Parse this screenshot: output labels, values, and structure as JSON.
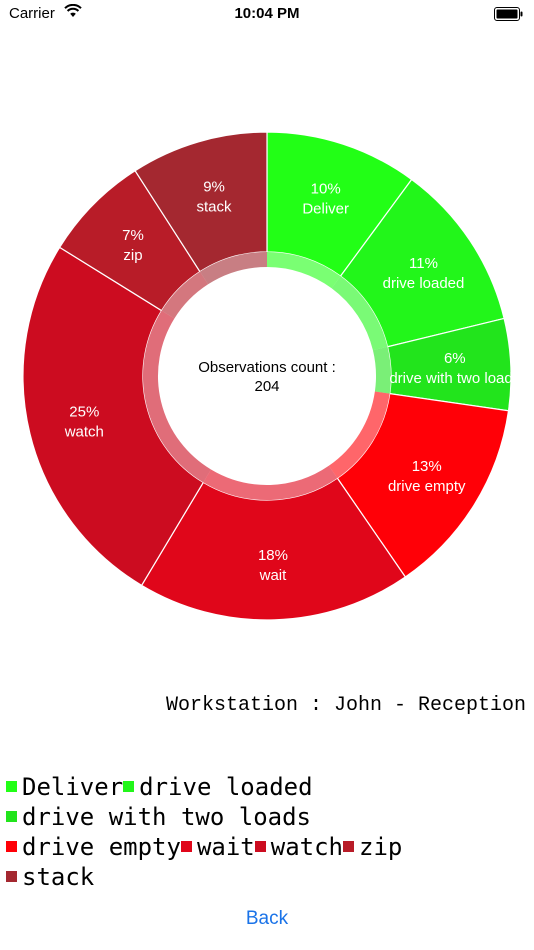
{
  "status_bar": {
    "carrier": "Carrier",
    "time": "10:04 PM"
  },
  "chart_data": {
    "type": "pie",
    "title": "",
    "center_text": {
      "line1": "Observations count :",
      "line2": "204"
    },
    "slices": [
      {
        "label": "Deliver",
        "percent_label": "10%",
        "value": 10,
        "color": "#22ff16"
      },
      {
        "label": "drive loaded",
        "percent_label": "11%",
        "value": 11,
        "color": "#22f61a"
      },
      {
        "label": "drive with two loads",
        "percent_label": "6%",
        "value": 6,
        "color": "#22e41c"
      },
      {
        "label": "drive empty",
        "percent_label": "13%",
        "value": 13,
        "color": "#ff0007"
      },
      {
        "label": "wait",
        "percent_label": "18%",
        "value": 18,
        "color": "#e0061a"
      },
      {
        "label": "watch",
        "percent_label": "25%",
        "value": 25,
        "color": "#cc0c20"
      },
      {
        "label": "zip",
        "percent_label": "7%",
        "value": 7,
        "color": "#b81c28"
      },
      {
        "label": "stack",
        "percent_label": "9%",
        "value": 9,
        "color": "#a42830"
      }
    ]
  },
  "workstation": {
    "text": "Workstation : John - Reception"
  },
  "legend": {
    "lines": [
      [
        "Deliver",
        "drive loaded"
      ],
      [
        "drive with two loads"
      ],
      [
        "drive empty",
        "wait",
        "watch",
        "zip"
      ],
      [
        "stack"
      ]
    ],
    "colors": {
      "Deliver": "#22ff16",
      "drive loaded": "#22f61a",
      "drive with two loads": "#22e41c",
      "drive empty": "#ff0007",
      "wait": "#e0061a",
      "watch": "#cc0c20",
      "zip": "#b81c28",
      "stack": "#a42830"
    }
  },
  "back_button": {
    "label": "Back"
  }
}
